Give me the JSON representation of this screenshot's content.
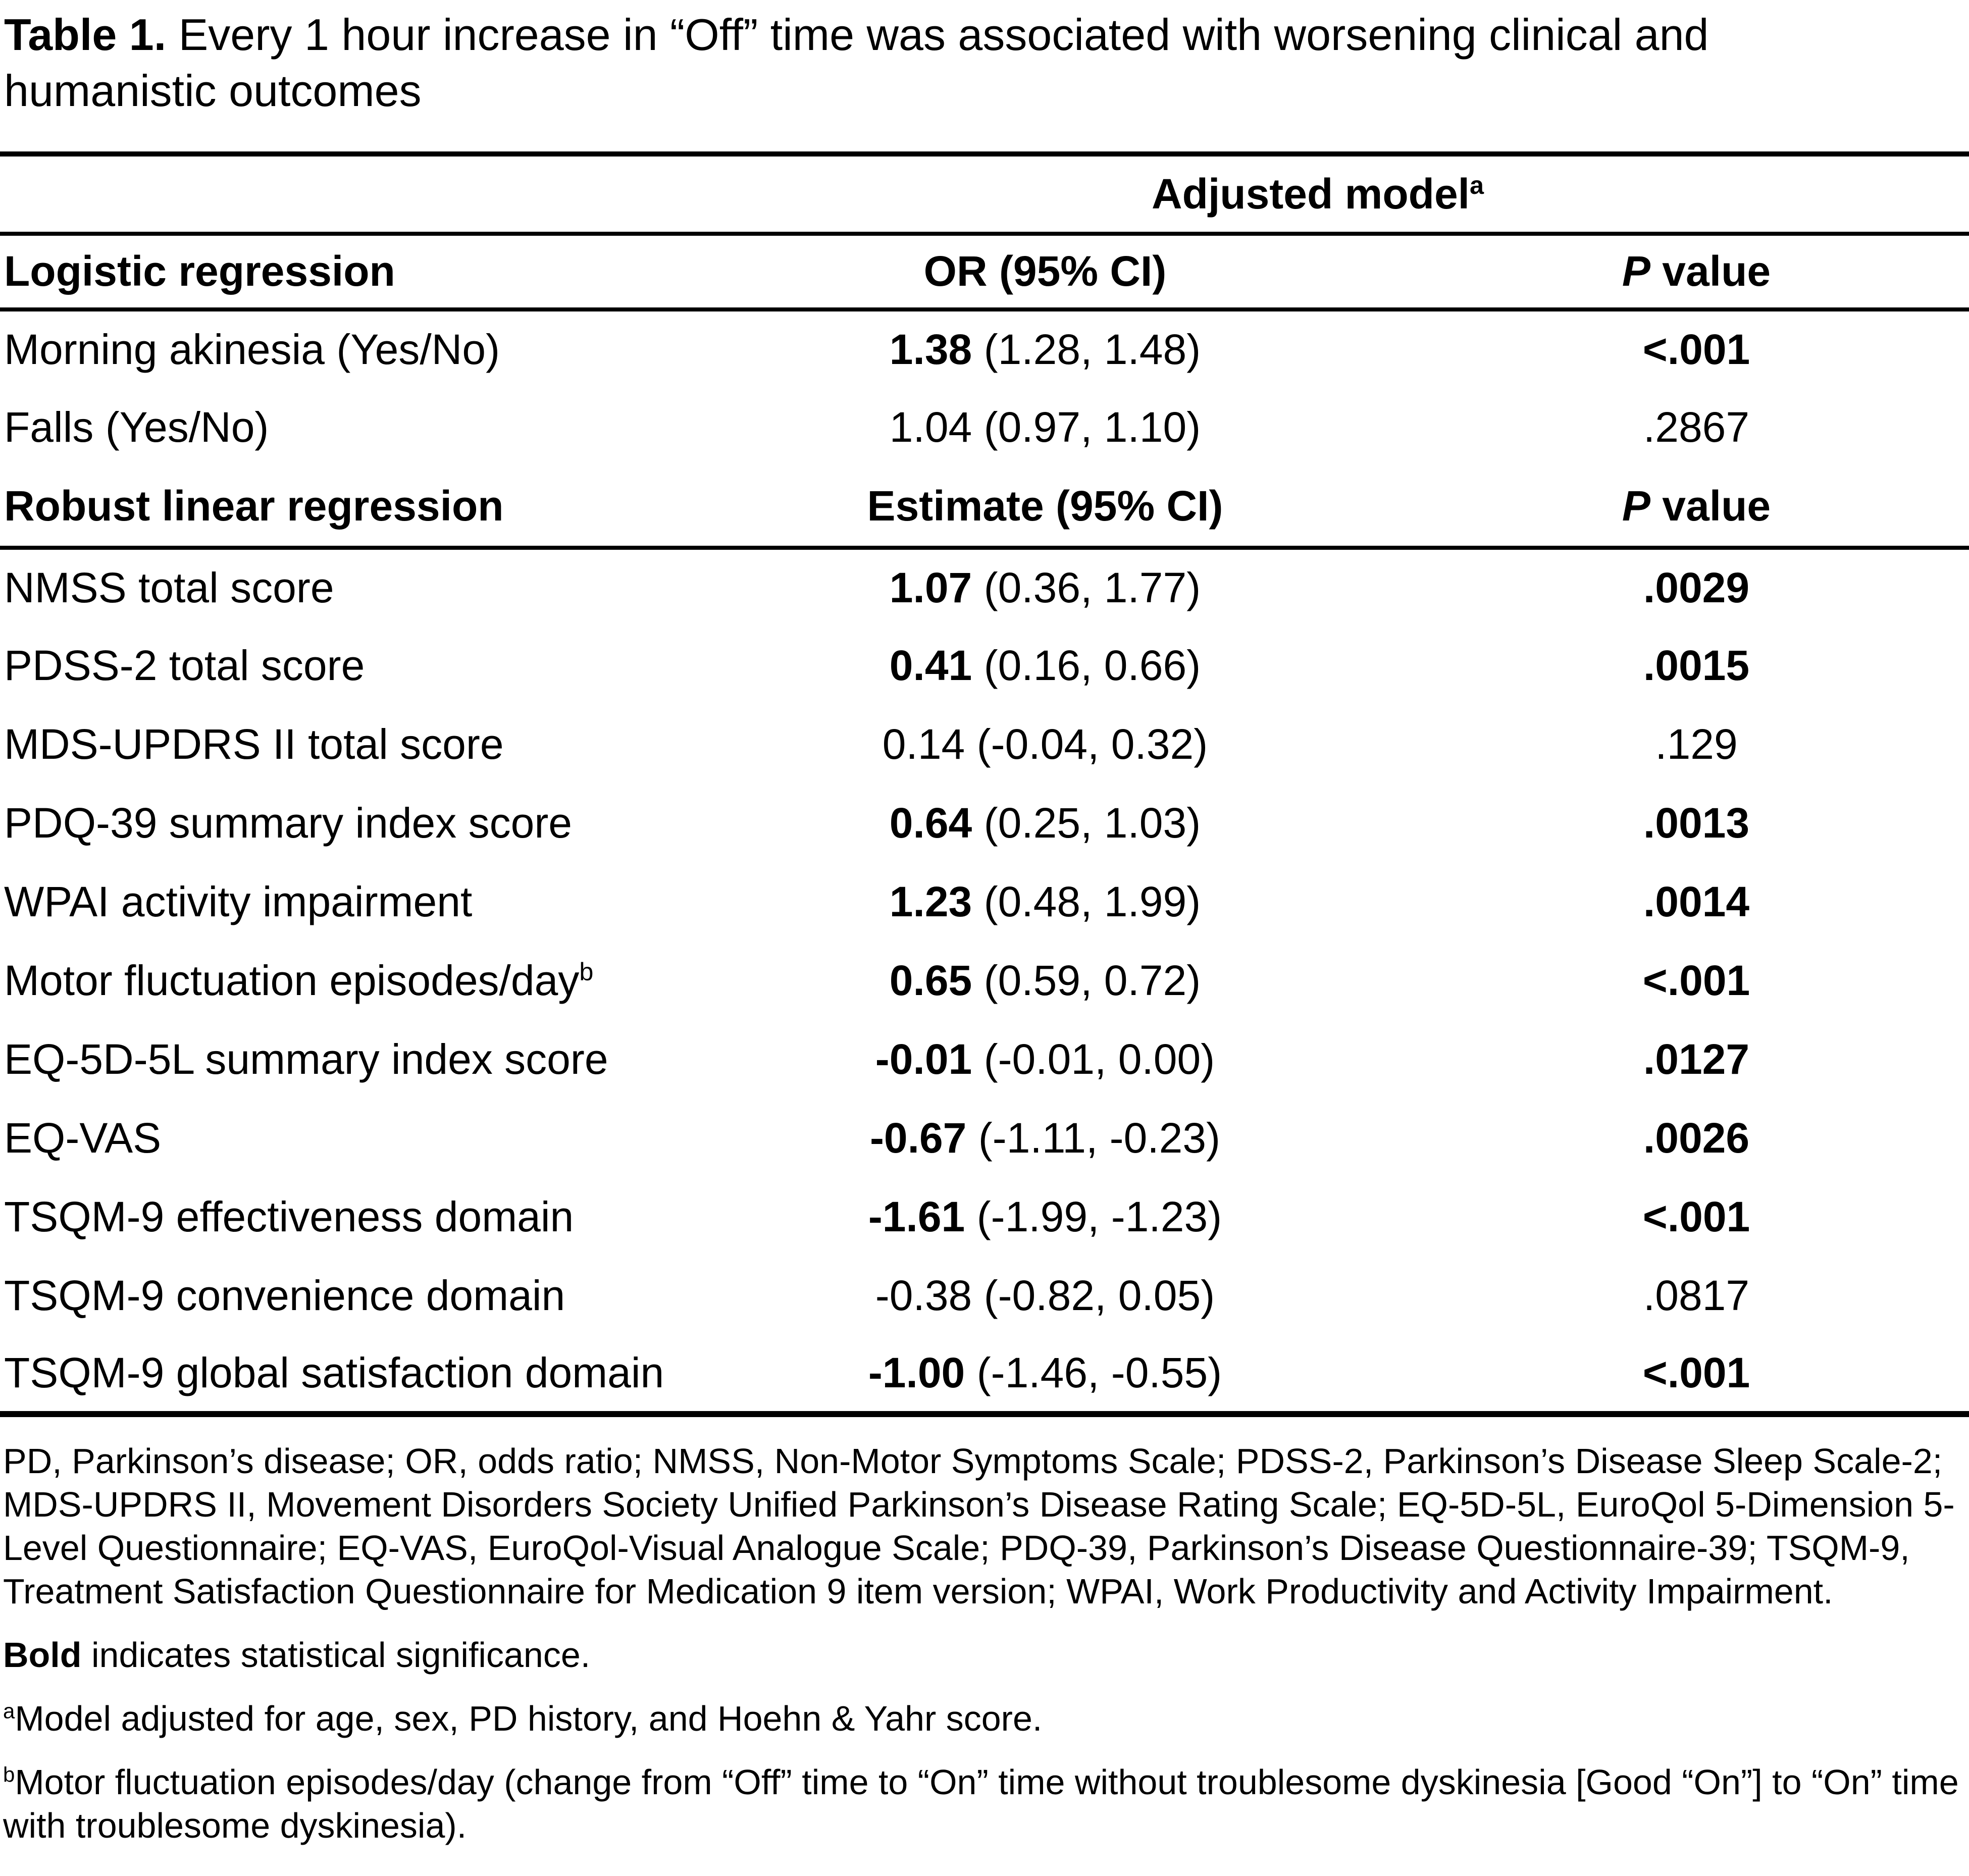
{
  "title": {
    "prefix": "Table 1.",
    "text": "Every 1 hour increase in “Off” time was associated with worsening clinical and humanistic outcomes"
  },
  "table": {
    "adjusted_model_header": {
      "text": "Adjusted model",
      "sup": "a"
    },
    "logistic": {
      "header": {
        "label": "Logistic regression",
        "estimate": "OR (95% CI)",
        "p_italic": "P",
        "p_rest": " value"
      },
      "rows": [
        {
          "label": "Morning akinesia (Yes/No)",
          "estimate": "1.38",
          "ci": "(1.28, 1.48)",
          "p": "<.001",
          "significant": true
        },
        {
          "label": "Falls (Yes/No)",
          "estimate": "1.04",
          "ci": "(0.97, 1.10)",
          "p": ".2867",
          "significant": false
        }
      ]
    },
    "robust": {
      "header": {
        "label": "Robust linear regression",
        "estimate": "Estimate (95% CI)",
        "p_italic": "P",
        "p_rest": " value"
      },
      "rows": [
        {
          "label": "NMSS total score",
          "estimate": "1.07",
          "ci": "(0.36, 1.77)",
          "p": ".0029",
          "significant": true
        },
        {
          "label": "PDSS-2 total score",
          "estimate": "0.41",
          "ci": "(0.16, 0.66)",
          "p": ".0015",
          "significant": true
        },
        {
          "label": "MDS-UPDRS II total score",
          "estimate": "0.14",
          "ci": "(-0.04, 0.32)",
          "p": ".129",
          "significant": false
        },
        {
          "label": "PDQ-39 summary index score",
          "estimate": "0.64",
          "ci": "(0.25, 1.03)",
          "p": ".0013",
          "significant": true
        },
        {
          "label": "WPAI activity impairment",
          "estimate": "1.23",
          "ci": "(0.48, 1.99)",
          "p": ".0014",
          "significant": true
        },
        {
          "label": "Motor fluctuation episodes/day",
          "label_sup": "b",
          "estimate": "0.65",
          "ci": "(0.59, 0.72)",
          "p": "<.001",
          "significant": true
        },
        {
          "label": "EQ-5D-5L summary index score",
          "estimate": "-0.01",
          "ci": "(-0.01, 0.00)",
          "p": ".0127",
          "significant": true
        },
        {
          "label": "EQ-VAS",
          "estimate": "-0.67",
          "ci": "(-1.11, -0.23)",
          "p": ".0026",
          "significant": true
        },
        {
          "label": "TSQM-9 effectiveness domain",
          "estimate": "-1.61",
          "ci": "(-1.99, -1.23)",
          "p": "<.001",
          "significant": true
        },
        {
          "label": "TSQM-9 convenience domain",
          "estimate": "-0.38",
          "ci": "(-0.82, 0.05)",
          "p": ".0817",
          "significant": false
        },
        {
          "label": "TSQM-9 global satisfaction domain",
          "estimate": "-1.00",
          "ci": "(-1.46, -0.55)",
          "p": "<.001",
          "significant": true
        }
      ]
    }
  },
  "footnotes": {
    "abbreviations": "PD, Parkinson’s disease; OR, odds ratio; NMSS, Non-Motor Symptoms Scale; PDSS-2, Parkinson’s Disease Sleep Scale-2; MDS-UPDRS II, Movement Disorders Society Unified Parkinson’s Disease Rating Scale; EQ-5D-5L, EuroQol 5-Dimension 5-Level Questionnaire; EQ-VAS, EuroQol-Visual Analogue Scale; PDQ-39, Parkinson’s Disease Questionnaire-39; TSQM-9, Treatment Satisfaction Questionnaire for Medication 9 item version; WPAI, Work Productivity and Activity Impairment.",
    "bold_note": {
      "bold": "Bold",
      "rest": " indicates statistical significance."
    },
    "note_a": {
      "sup": "a",
      "text": "Model adjusted for age, sex, PD history, and Hoehn & Yahr score."
    },
    "note_b": {
      "sup": "b",
      "text": "Motor fluctuation episodes/day (change from “Off” time to “On” time without troublesome dyskinesia [Good “On”] to “On” time with troublesome dyskinesia)."
    }
  }
}
